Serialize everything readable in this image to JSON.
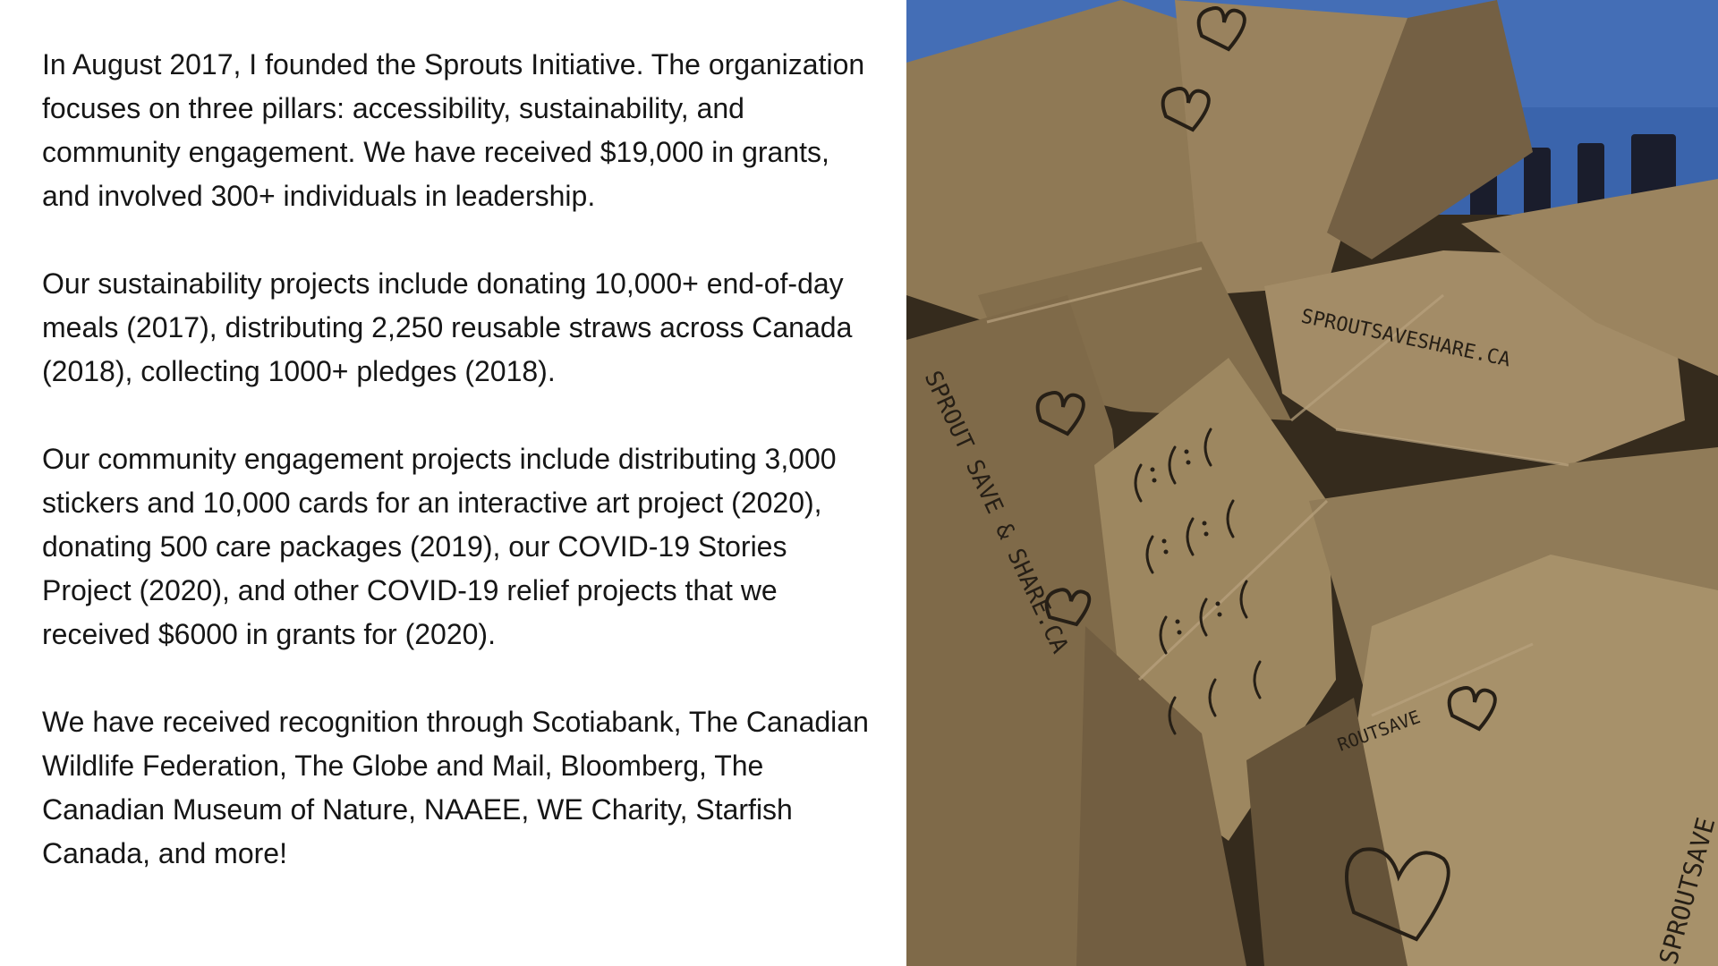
{
  "paragraphs": [
    " In August 2017, I founded the Sprouts Initiative. The organization focuses on three pillars: accessibility, sustainability, and community engagement. We have received $19,000 in grants, and involved 300+ individuals in leadership.",
    "Our sustainability projects include donating 10,000+ end-of-day meals (2017), distributing 2,250 reusable straws across Canada (2018), collecting 1000+ pledges (2018).",
    "Our community engagement projects include distributing 3,000 stickers and 10,000 cards for an interactive art project (2020), donating 500 care packages (2019), our COVID-19 Stories Project (2020), and other COVID-19 relief projects that we received $6000 in grants for (2020).",
    "We have received recognition through Scotiabank, The Canadian Wildlife Federation, The Globe and Mail, Bloomberg, The Canadian Museum of Nature, NAAEE, WE Charity, Starfish Canada, and more!"
  ],
  "photo": {
    "bag_writing": [
      "SPROUT SAVE & SHARE.CA",
      "SPROUTSAVESHARE.CA",
      "SPROUTSAVE",
      "ROUTSAVE"
    ],
    "colors": {
      "crate_blue": "#3f6dbb",
      "paper_light": "#b59c72",
      "paper_mid": "#937c57",
      "paper_dark": "#5b4b33",
      "ink": "#2a2218"
    }
  }
}
